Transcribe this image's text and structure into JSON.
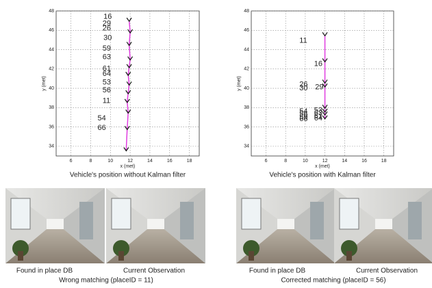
{
  "chart_data": [
    {
      "type": "line",
      "xlabel": "x (met)",
      "ylabel": "y (met)",
      "caption": "Vehicle's position without Kalman filter",
      "xlim": [
        4.5,
        19
      ],
      "ylim": [
        33,
        48
      ],
      "xticks": [
        6,
        8,
        10,
        12,
        14,
        16,
        18
      ],
      "yticks": [
        34,
        36,
        38,
        40,
        42,
        44,
        46,
        48
      ],
      "grid": true,
      "series": [
        {
          "color": "#e03ce0",
          "marker_color": "#111111",
          "x": [
            11.6,
            11.7,
            11.8,
            11.7,
            11.8,
            11.9,
            11.8,
            11.9,
            12.0,
            11.9,
            12.0,
            11.9
          ],
          "y": [
            33.6,
            35.8,
            37.5,
            38.6,
            39.5,
            40.4,
            41.4,
            42.2,
            43.0,
            44.5,
            45.8,
            47.0
          ]
        }
      ],
      "annotations": [
        {
          "text": "16",
          "x": 9.3,
          "y": 47.4
        },
        {
          "text": "29",
          "x": 9.2,
          "y": 46.7
        },
        {
          "text": "26",
          "x": 9.2,
          "y": 46.2
        },
        {
          "text": "30",
          "x": 9.3,
          "y": 45.2
        },
        {
          "text": "59",
          "x": 9.2,
          "y": 44.1
        },
        {
          "text": "63",
          "x": 9.2,
          "y": 43.2
        },
        {
          "text": "61",
          "x": 9.2,
          "y": 42.0
        },
        {
          "text": "64",
          "x": 9.2,
          "y": 41.5
        },
        {
          "text": "53",
          "x": 9.2,
          "y": 40.6
        },
        {
          "text": "56",
          "x": 9.2,
          "y": 39.8
        },
        {
          "text": "11",
          "x": 9.2,
          "y": 38.7
        },
        {
          "text": "54",
          "x": 8.7,
          "y": 36.9
        },
        {
          "text": "66",
          "x": 8.7,
          "y": 35.9
        }
      ]
    },
    {
      "type": "line",
      "xlabel": "x (met)",
      "ylabel": "y (met)",
      "caption": "Vehicle's position with Kalman filter",
      "xlim": [
        4.5,
        19
      ],
      "ylim": [
        33,
        48
      ],
      "xticks": [
        6,
        8,
        10,
        12,
        14,
        16,
        18
      ],
      "yticks": [
        34,
        36,
        38,
        40,
        42,
        44,
        46,
        48
      ],
      "grid": true,
      "series": [
        {
          "color": "#e03ce0",
          "marker_color": "#111111",
          "x": [
            12,
            12,
            12,
            12,
            12,
            12,
            12,
            12
          ],
          "y": [
            36.9,
            37.3,
            37.6,
            38.0,
            40.2,
            40.6,
            42.8,
            45.5
          ]
        }
      ],
      "annotations": [
        {
          "text": "11",
          "x": 9.4,
          "y": 44.9
        },
        {
          "text": "16",
          "x": 10.9,
          "y": 42.5
        },
        {
          "text": "26",
          "x": 9.4,
          "y": 40.4
        },
        {
          "text": "30",
          "x": 9.4,
          "y": 40.0
        },
        {
          "text": "29",
          "x": 11.0,
          "y": 40.1
        },
        {
          "text": "54",
          "x": 9.4,
          "y": 37.6
        },
        {
          "text": "56",
          "x": 9.4,
          "y": 37.3
        },
        {
          "text": "59",
          "x": 9.4,
          "y": 37.0
        },
        {
          "text": "66",
          "x": 9.4,
          "y": 36.8
        },
        {
          "text": "53",
          "x": 10.9,
          "y": 37.7
        },
        {
          "text": "63",
          "x": 10.9,
          "y": 37.4
        },
        {
          "text": "61",
          "x": 10.9,
          "y": 37.1
        },
        {
          "text": "64",
          "x": 10.9,
          "y": 36.9
        }
      ]
    }
  ],
  "photos": [
    {
      "left_caption": "Found in place DB",
      "right_caption": "Current Observation",
      "caption": "Wrong matching (placeID = 11)"
    },
    {
      "left_caption": "Found in place DB",
      "right_caption": "Current Observation",
      "caption": "Corrected matching (placeID = 56)"
    }
  ]
}
